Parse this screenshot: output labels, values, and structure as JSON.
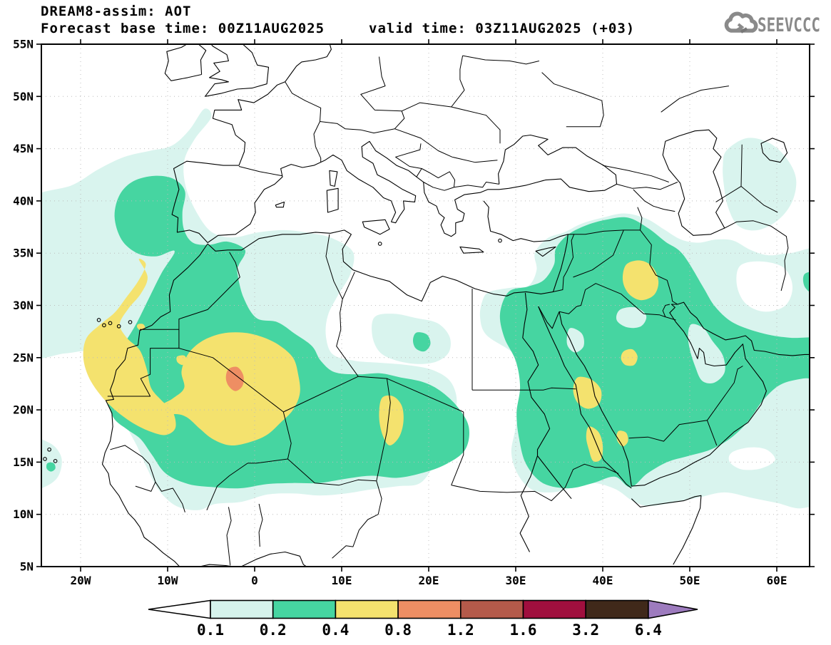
{
  "header": {
    "title_line": "DREAM8-assim: AOT",
    "forecast_base": "Forecast base time: 00Z11AUG2025",
    "valid_time": "valid time: 03Z11AUG2025 (+03)"
  },
  "logo": {
    "text": "SEEVCCC",
    "color": "#8a8a8a",
    "icon": "cloud-arrow-icon"
  },
  "axes": {
    "lat_ticks": [
      "55N",
      "50N",
      "45N",
      "40N",
      "35N",
      "30N",
      "25N",
      "20N",
      "15N",
      "10N",
      "5N"
    ],
    "lon_ticks": [
      "20W",
      "10W",
      "0",
      "10E",
      "20E",
      "30E",
      "40E",
      "50E",
      "60E"
    ]
  },
  "legend": {
    "values": [
      "0.1",
      "0.2",
      "0.4",
      "0.8",
      "1.2",
      "1.6",
      "3.2",
      "6.4"
    ],
    "colors": [
      "#ffffff",
      "#d6f3ec",
      "#46d5a1",
      "#f4e26e",
      "#ee8e63",
      "#b45a4a",
      "#a00f3e",
      "#40291a",
      "#9d7bbe"
    ]
  },
  "chart_data": {
    "type": "filled-contour-map",
    "title": "DREAM8-assim: AOT",
    "variable": "AOT (aerosol optical thickness)",
    "forecast_base_time": "00Z11AUG2025",
    "valid_time": "03Z11AUG2025",
    "lead_hours": "+03",
    "region": {
      "lon_min_deg_east": -24.5,
      "lon_max_deg_east": 63.8,
      "lat_min_deg_north": 5,
      "lat_max_deg_north": 55
    },
    "contour_levels": [
      0.1,
      0.2,
      0.4,
      0.8,
      1.2,
      1.6,
      3.2,
      6.4
    ],
    "level_colors": {
      "0.1-0.2": "#d6f3ec",
      "0.2-0.4": "#46d5a1",
      "0.4-0.8": "#f4e26e",
      "0.8-1.2": "#ee8e63",
      "1.2-1.6": "#b45a4a",
      "1.6-3.2": "#a00f3e",
      "3.2-6.4": "#40291a",
      "above-6.4": "#9d7bbe"
    },
    "max_level_reached": "0.8-1.2",
    "features": [
      "Large Saharan dust plume 0.2-0.4 spanning West Africa from the Atlantic coast to about 25E between 13N and 35N",
      "Core 0.4-0.8 over Mali / southern Algeria centered near 2W 23N with an embedded 0.8-1.2 maximum near 2.2W 23N",
      "0.4-0.8 band along the NW African coast and Canary Islands from about 34N down to 18N",
      "Isolated 0.4-0.8 cell over Chad near 16E 19N",
      "Middle East plume 0.2-0.4 covering the Levant, Iraq and the Arabian Peninsula with 0.4-0.8 cells over Iraq near 44E 32N, central Saudi Arabia near 43E 25N, and along the Red Sea near 38E 22N and 39E 17N",
      "0.1-0.2 halo extending over the NE Atlantic toward Brittany, over Portugal, central Libya, the Caspian region and the Arabian Sea"
    ]
  },
  "colors": {
    "grid": "#bcbcbc",
    "line": "#000000",
    "frame": "#000000",
    "cyan": "#d9f4ee",
    "teal": "#46d5a1",
    "yellow": "#f4e26e",
    "orange": "#ee8e63"
  }
}
